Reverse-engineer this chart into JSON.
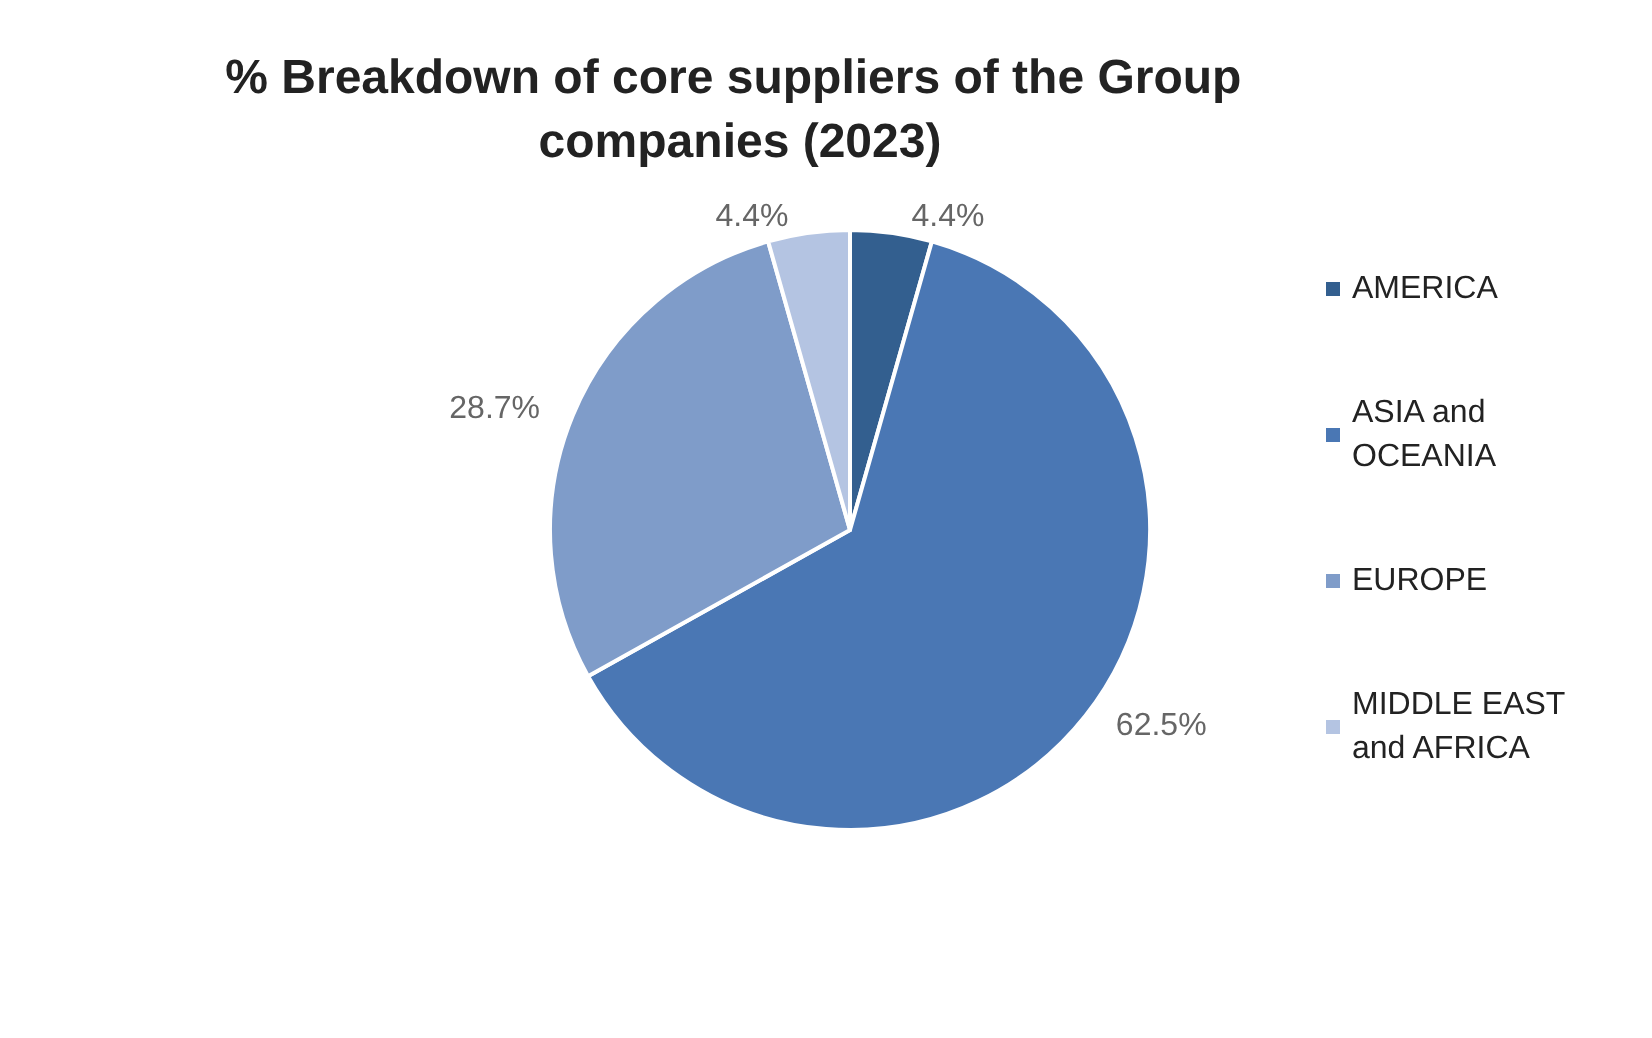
{
  "chart_data": {
    "type": "pie",
    "title": "% Breakdown of core suppliers of the Group companies (2023)",
    "categories": [
      "AMERICA",
      "ASIA and OCEANIA",
      "EUROPE",
      "MIDDLE EAST and AFRICA"
    ],
    "values": [
      4.4,
      62.5,
      28.7,
      4.4
    ],
    "colors": [
      "#335f8f",
      "#4a77b4",
      "#7f9cc9",
      "#b4c4e2"
    ],
    "value_labels": [
      "4.4%",
      "62.5%",
      "28.7%",
      "4.4%"
    ],
    "legend": "right"
  }
}
